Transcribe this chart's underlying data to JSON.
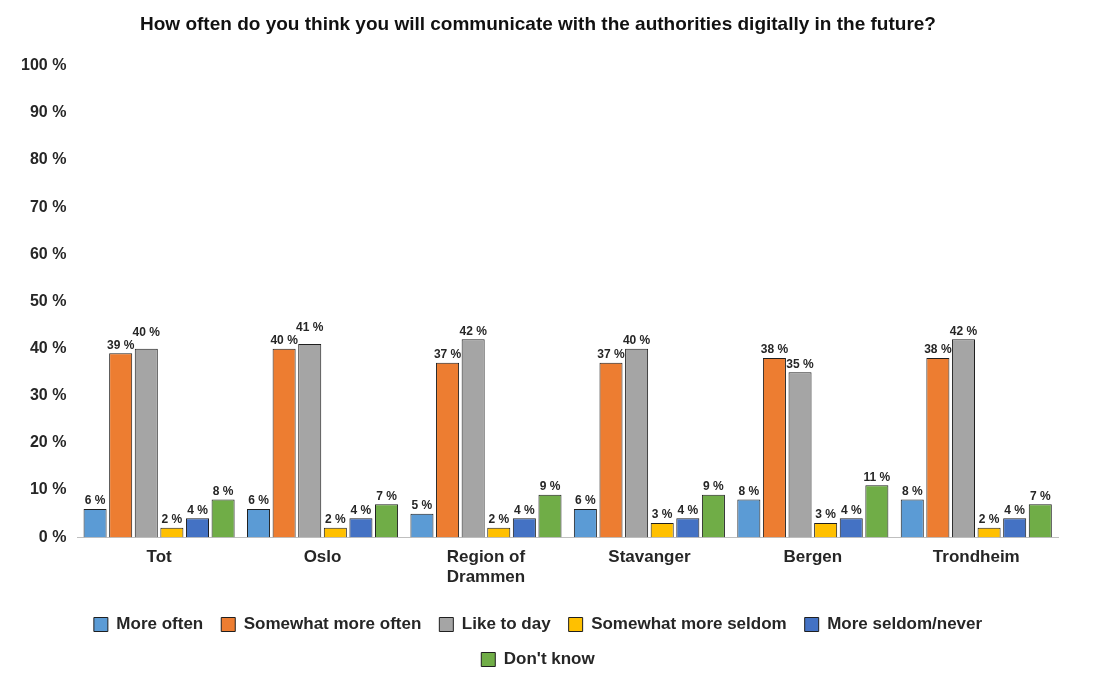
{
  "chart_data": {
    "type": "bar",
    "title": "How often do you think you will communicate with the authorities digitally in the future?",
    "categories": [
      "Tot",
      "Oslo",
      "Region of Drammen",
      "Stavanger",
      "Bergen",
      "Trondheim"
    ],
    "series": [
      {
        "name": "More often",
        "color": "#5b9bd5",
        "values": [
          6,
          6,
          5,
          6,
          8,
          8
        ],
        "value_labels": [
          "6 %",
          "6 %",
          "5 %",
          "6 %",
          "8 %",
          "8 %"
        ]
      },
      {
        "name": "Somewhat more often",
        "color": "#ed7d31",
        "values": [
          39,
          40,
          37,
          37,
          38,
          38
        ],
        "value_labels": [
          "39 %",
          "40 %",
          "37 %",
          "37 %",
          "38 %",
          "38 %"
        ]
      },
      {
        "name": "Like to day",
        "color": "#a5a5a5",
        "values": [
          40,
          41,
          42,
          40,
          35,
          42
        ],
        "value_labels": [
          "40 %",
          "41 %",
          "42 %",
          "40 %",
          "35 %",
          "42 %"
        ]
      },
      {
        "name": "Somewhat more seldom",
        "color": "#ffc000",
        "values": [
          2,
          2,
          2,
          3,
          3,
          2
        ],
        "value_labels": [
          "2 %",
          "2 %",
          "2 %",
          "3 %",
          "3 %",
          "2 %"
        ]
      },
      {
        "name": "More seldom/never",
        "color": "#4472c4",
        "values": [
          4,
          4,
          4,
          4,
          4,
          4
        ],
        "value_labels": [
          "4 %",
          "4 %",
          "4 %",
          "4 %",
          "4 %",
          "4 %"
        ]
      },
      {
        "name": "Don't know",
        "color": "#70ad47",
        "values": [
          8,
          7,
          9,
          9,
          11,
          7
        ],
        "value_labels": [
          "8 %",
          "7 %",
          "9 %",
          "9 %",
          "11 %",
          "7 %"
        ]
      }
    ],
    "ylim": [
      0,
      100
    ],
    "yticks": [
      {
        "value": 0,
        "label": "0 %"
      },
      {
        "value": 10,
        "label": "10 %"
      },
      {
        "value": 20,
        "label": "20 %"
      },
      {
        "value": 30,
        "label": "30 %"
      },
      {
        "value": 40,
        "label": "40 %"
      },
      {
        "value": 50,
        "label": "50 %"
      },
      {
        "value": 60,
        "label": "60 %"
      },
      {
        "value": 70,
        "label": "70 %"
      },
      {
        "value": 80,
        "label": "80 %"
      },
      {
        "value": 90,
        "label": "90 %"
      },
      {
        "value": 100,
        "label": "100 %"
      }
    ],
    "grid": false,
    "legend": "bottom"
  }
}
